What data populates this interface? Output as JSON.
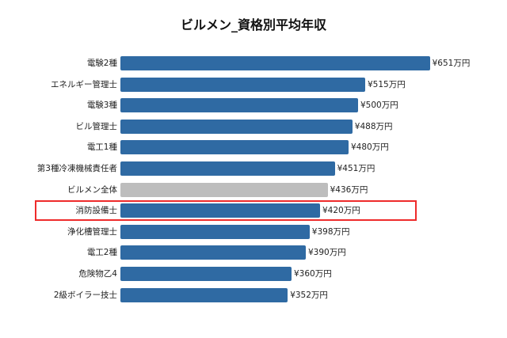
{
  "chart_data": {
    "type": "bar",
    "orientation": "horizontal",
    "title": "ビルメン_資格別平均年収",
    "xlabel": "",
    "ylabel": "",
    "grid": false,
    "legend": null,
    "value_unit": "万円",
    "categories": [
      "電験2種",
      "エネルギー管理士",
      "電験3種",
      "ビル管理士",
      "電工1種",
      "第3種冷凍機械責任者",
      "ビルメン全体",
      "消防設備士",
      "浄化槽管理士",
      "電工2種",
      "危険物乙4",
      "2級ボイラー技士"
    ],
    "values": [
      651,
      515,
      500,
      488,
      480,
      451,
      436,
      420,
      398,
      390,
      360,
      352
    ],
    "data_labels": [
      "¥651万円",
      "¥515万円",
      "¥500万円",
      "¥488万円",
      "¥480万円",
      "¥451万円",
      "¥436万円",
      "¥420万円",
      "¥398万円",
      "¥390万円",
      "¥360万円",
      "¥352万円"
    ],
    "colors": {
      "default": "#2f6aa3",
      "reference": "#bdbdbd",
      "highlight_box": "#ee2b2b"
    },
    "reference_category": "ビルメン全体",
    "highlighted_category": "消防設備士"
  }
}
